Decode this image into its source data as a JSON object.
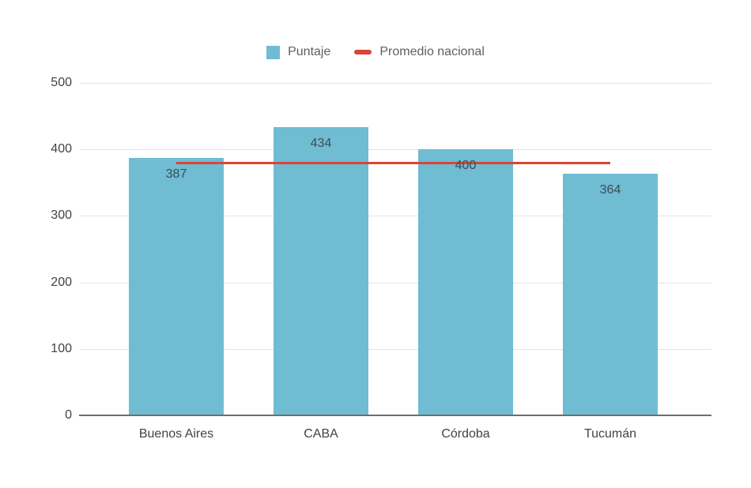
{
  "legend": {
    "items": [
      {
        "label": "Puntaje",
        "type": "bar"
      },
      {
        "label": "Promedio nacional",
        "type": "line"
      }
    ]
  },
  "colors": {
    "bar": "#6FBCD3",
    "line": "#DB4437",
    "gridline": "#E3E3E3",
    "baseline": "#6E6E6E",
    "axis_text": "#424242",
    "annotation_text": "#3E4C54",
    "legend_text": "#5F5F5F",
    "background": "#FFFFFF"
  },
  "chart_data": {
    "type": "bar",
    "title": "",
    "xlabel": "",
    "ylabel": "",
    "categories": [
      "Buenos Aires",
      "CABA",
      "Córdoba",
      "Tucumán"
    ],
    "series": [
      {
        "name": "Puntaje",
        "type": "bar",
        "values": [
          387,
          434,
          400,
          364
        ],
        "color": "#6FBCD3"
      },
      {
        "name": "Promedio nacional",
        "type": "line",
        "value": 380,
        "color": "#DB4437"
      }
    ],
    "annotations": [
      "387",
      "434",
      "400",
      "364"
    ],
    "ylim": [
      0,
      500
    ],
    "yticks": [
      0,
      100,
      200,
      300,
      400,
      500
    ],
    "grid": true,
    "legend_position": "top"
  }
}
